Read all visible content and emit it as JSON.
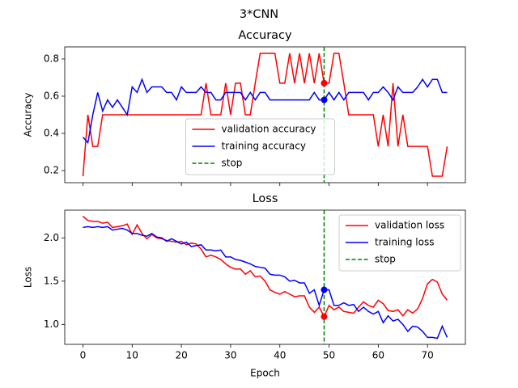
{
  "title": "3*CNN",
  "chart_data": [
    {
      "type": "line",
      "title": "Accuracy",
      "y_label": "Accuracy",
      "x": [
        0,
        1,
        2,
        3,
        4,
        5,
        6,
        7,
        8,
        9,
        10,
        11,
        12,
        13,
        14,
        15,
        16,
        17,
        18,
        19,
        20,
        21,
        22,
        23,
        24,
        25,
        26,
        27,
        28,
        29,
        30,
        31,
        32,
        33,
        34,
        35,
        36,
        37,
        38,
        39,
        40,
        41,
        42,
        43,
        44,
        45,
        46,
        47,
        48,
        49,
        50,
        51,
        52,
        53,
        54,
        55,
        56,
        57,
        58,
        59,
        60,
        61,
        62,
        63,
        64,
        65,
        66,
        67,
        68,
        69,
        70,
        71,
        72,
        73,
        74
      ],
      "series": [
        {
          "name": "validation accuracy",
          "color": "#ff0000",
          "values": [
            0.17,
            0.5,
            0.33,
            0.33,
            0.5,
            0.5,
            0.5,
            0.5,
            0.5,
            0.5,
            0.5,
            0.5,
            0.5,
            0.5,
            0.5,
            0.5,
            0.5,
            0.5,
            0.5,
            0.5,
            0.5,
            0.5,
            0.5,
            0.5,
            0.5,
            0.67,
            0.5,
            0.5,
            0.5,
            0.67,
            0.5,
            0.67,
            0.67,
            0.5,
            0.5,
            0.67,
            0.83,
            0.83,
            0.83,
            0.83,
            0.67,
            0.67,
            0.83,
            0.67,
            0.83,
            0.67,
            0.83,
            0.67,
            0.83,
            0.67,
            0.67,
            0.83,
            0.83,
            0.67,
            0.5,
            0.5,
            0.5,
            0.5,
            0.5,
            0.5,
            0.33,
            0.5,
            0.33,
            0.67,
            0.33,
            0.5,
            0.33,
            0.33,
            0.33,
            0.33,
            0.33,
            0.17,
            0.17,
            0.17,
            0.33
          ]
        },
        {
          "name": "training accuracy",
          "color": "#0000ff",
          "values": [
            0.38,
            0.35,
            0.5,
            0.62,
            0.52,
            0.58,
            0.54,
            0.58,
            0.54,
            0.5,
            0.65,
            0.62,
            0.69,
            0.62,
            0.65,
            0.65,
            0.65,
            0.62,
            0.62,
            0.58,
            0.65,
            0.62,
            0.62,
            0.62,
            0.65,
            0.62,
            0.62,
            0.58,
            0.58,
            0.62,
            0.62,
            0.62,
            0.62,
            0.58,
            0.62,
            0.58,
            0.62,
            0.62,
            0.58,
            0.58,
            0.58,
            0.58,
            0.58,
            0.58,
            0.58,
            0.58,
            0.58,
            0.62,
            0.58,
            0.58,
            0.62,
            0.58,
            0.62,
            0.58,
            0.62,
            0.62,
            0.62,
            0.62,
            0.58,
            0.62,
            0.62,
            0.65,
            0.62,
            0.58,
            0.65,
            0.62,
            0.62,
            0.62,
            0.65,
            0.69,
            0.65,
            0.69,
            0.69,
            0.62,
            0.62
          ]
        }
      ],
      "stop": {
        "name": "stop",
        "x": 49,
        "color": "#008000",
        "index": 49
      },
      "xlim": [
        -3.7,
        77.7
      ],
      "ylim": [
        0.135,
        0.865
      ],
      "xticks": [
        0,
        10,
        20,
        30,
        40,
        50,
        60,
        70
      ],
      "show_xticklabels": false,
      "yticks": [
        0.2,
        0.4,
        0.6,
        0.8
      ],
      "legend": "lower center"
    },
    {
      "type": "line",
      "title": "Loss",
      "y_label": "Loss",
      "x_label": "Epoch",
      "x": [
        0,
        1,
        2,
        3,
        4,
        5,
        6,
        7,
        8,
        9,
        10,
        11,
        12,
        13,
        14,
        15,
        16,
        17,
        18,
        19,
        20,
        21,
        22,
        23,
        24,
        25,
        26,
        27,
        28,
        29,
        30,
        31,
        32,
        33,
        34,
        35,
        36,
        37,
        38,
        39,
        40,
        41,
        42,
        43,
        44,
        45,
        46,
        47,
        48,
        49,
        50,
        51,
        52,
        53,
        54,
        55,
        56,
        57,
        58,
        59,
        60,
        61,
        62,
        63,
        64,
        65,
        66,
        67,
        68,
        69,
        70,
        71,
        72,
        73,
        74
      ],
      "series": [
        {
          "name": "validation loss",
          "color": "#ff0000",
          "values": [
            2.25,
            2.2,
            2.19,
            2.19,
            2.17,
            2.18,
            2.12,
            2.13,
            2.14,
            2.16,
            2.04,
            2.15,
            2.05,
            1.99,
            2.04,
            2.0,
            1.99,
            1.97,
            1.96,
            1.95,
            1.96,
            1.92,
            1.94,
            1.93,
            1.87,
            1.78,
            1.8,
            1.78,
            1.75,
            1.7,
            1.66,
            1.64,
            1.64,
            1.58,
            1.62,
            1.55,
            1.56,
            1.5,
            1.4,
            1.37,
            1.35,
            1.38,
            1.35,
            1.32,
            1.33,
            1.33,
            1.2,
            1.14,
            1.2,
            1.09,
            1.22,
            1.17,
            1.2,
            1.15,
            1.14,
            1.13,
            1.2,
            1.26,
            1.22,
            1.2,
            1.28,
            1.24,
            1.16,
            1.15,
            1.17,
            1.1,
            1.17,
            1.13,
            1.18,
            1.3,
            1.47,
            1.52,
            1.49,
            1.35,
            1.28
          ]
        },
        {
          "name": "training loss",
          "color": "#0000ff",
          "values": [
            2.12,
            2.13,
            2.12,
            2.13,
            2.12,
            2.13,
            2.09,
            2.1,
            2.11,
            2.09,
            2.05,
            2.05,
            2.03,
            2.02,
            2.05,
            2.01,
            2.0,
            1.96,
            1.99,
            1.96,
            1.93,
            1.95,
            1.9,
            1.91,
            1.92,
            1.86,
            1.86,
            1.85,
            1.86,
            1.78,
            1.78,
            1.75,
            1.74,
            1.72,
            1.7,
            1.67,
            1.66,
            1.65,
            1.58,
            1.57,
            1.57,
            1.55,
            1.5,
            1.51,
            1.48,
            1.48,
            1.36,
            1.4,
            1.22,
            1.4,
            1.4,
            1.22,
            1.22,
            1.25,
            1.22,
            1.23,
            1.15,
            1.2,
            1.15,
            1.12,
            1.15,
            1.02,
            1.1,
            1.04,
            1.06,
            1.0,
            0.92,
            0.98,
            0.97,
            0.92,
            0.85,
            0.85,
            0.84,
            0.98,
            0.85
          ]
        }
      ],
      "stop": {
        "name": "stop",
        "x": 49,
        "color": "#008000",
        "index": 49
      },
      "xlim": [
        -3.7,
        77.7
      ],
      "ylim": [
        0.77,
        2.32
      ],
      "xticks": [
        0,
        10,
        20,
        30,
        40,
        50,
        60,
        70
      ],
      "show_xticklabels": true,
      "yticks": [
        {
          "value": 1,
          "label": "1.0"
        },
        1.5,
        {
          "value": 2,
          "label": "2.0"
        }
      ],
      "legend": "upper right"
    }
  ]
}
